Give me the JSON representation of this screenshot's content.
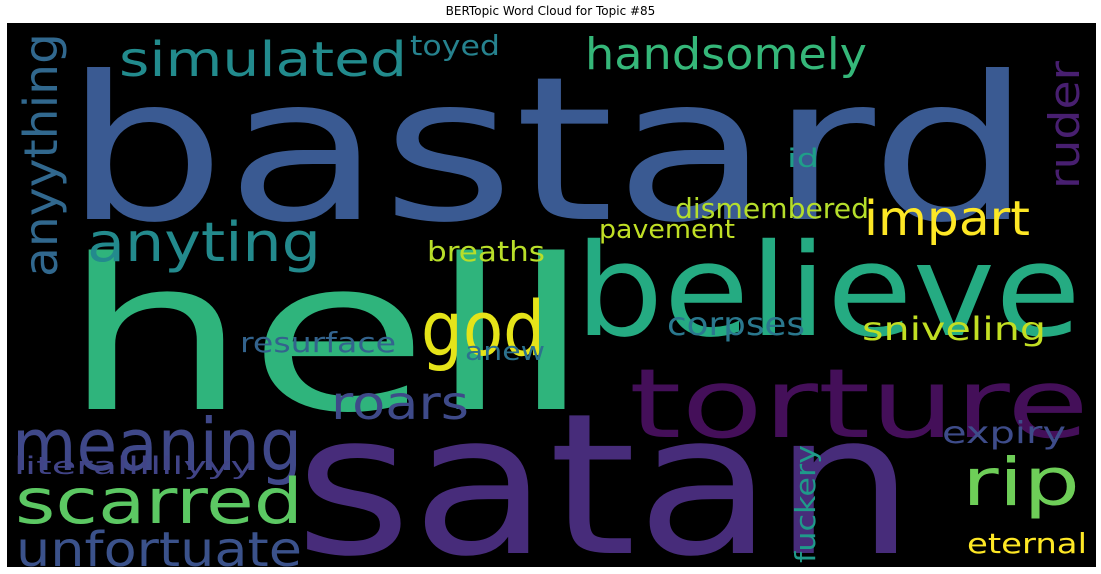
{
  "title": "BERTopic Word Cloud for Topic #85",
  "words": [
    {
      "text": "bastard",
      "color": "#3a5a92"
    },
    {
      "text": "hell",
      "color": "#2fb47c"
    },
    {
      "text": "satan",
      "color": "#472c7a"
    },
    {
      "text": "believe",
      "color": "#25ab82"
    },
    {
      "text": "torture",
      "color": "#440f59"
    },
    {
      "text": "meaning",
      "color": "#3f4889"
    },
    {
      "text": "scarred",
      "color": "#5cc863"
    },
    {
      "text": "unfortuate",
      "color": "#3b528b"
    },
    {
      "text": "god",
      "color": "#e5e419"
    },
    {
      "text": "anyting",
      "color": "#238a8d"
    },
    {
      "text": "simulated",
      "color": "#228b8d"
    },
    {
      "text": "handsomely",
      "color": "#35b779"
    },
    {
      "text": "impart",
      "color": "#fde725"
    },
    {
      "text": "rip",
      "color": "#6ece58"
    },
    {
      "text": "roars",
      "color": "#3e4a89"
    },
    {
      "text": "anyything",
      "color": "#31688e"
    },
    {
      "text": "ruder",
      "color": "#481f70"
    },
    {
      "text": "toyed",
      "color": "#26828e"
    },
    {
      "text": "dismembered",
      "color": "#b5de2b"
    },
    {
      "text": "pavement",
      "color": "#c0df25"
    },
    {
      "text": "breaths",
      "color": "#b8de29"
    },
    {
      "text": "corpses",
      "color": "#2a788e"
    },
    {
      "text": "sniveling",
      "color": "#c2df23"
    },
    {
      "text": "resurface",
      "color": "#33638d"
    },
    {
      "text": "anew",
      "color": "#2c728e"
    },
    {
      "text": "expiry",
      "color": "#3e4c8a"
    },
    {
      "text": "literallllllyyy",
      "color": "#414487"
    },
    {
      "text": "fuckery",
      "color": "#1f9a8a"
    },
    {
      "text": "eternal",
      "color": "#fde725"
    },
    {
      "text": "id",
      "color": "#1f9e89"
    }
  ]
}
